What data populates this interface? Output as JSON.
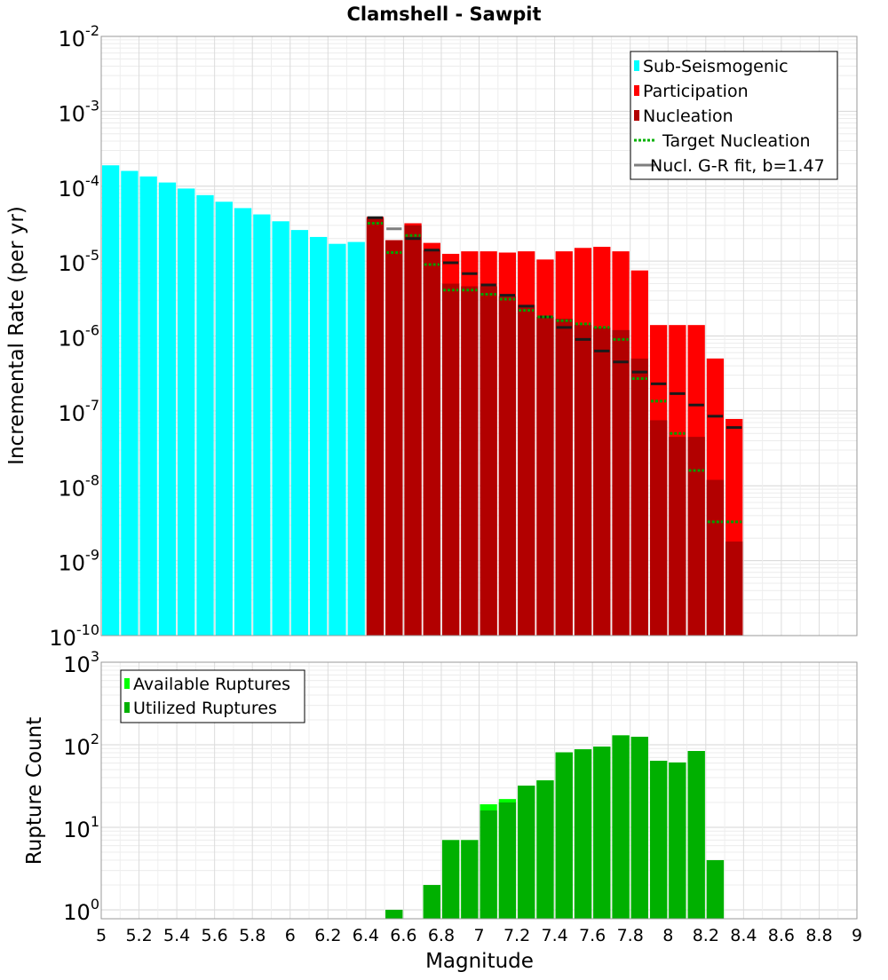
{
  "chart_data": [
    {
      "type": "bar",
      "title": "Clamshell - Sawpit",
      "xlabel": "",
      "ylabel": "Incremental Rate (per yr)",
      "yscale": "log",
      "ylim_exponents": [
        -10,
        -2
      ],
      "xlim": [
        5,
        9
      ],
      "grid": true,
      "bar_width": 0.1,
      "colors": {
        "sub_seismogenic": "#00ffff",
        "participation": "#ff0000",
        "nucleation": "#b20000",
        "target_nucleation": "#00a000",
        "gr_fit": "#7f7f7f",
        "nucl_tick": "#1a1a1a"
      },
      "legend": {
        "position": "top-right",
        "entries": [
          {
            "label": "Sub-Seismogenic",
            "kind": "box",
            "color": "#00ffff"
          },
          {
            "label": "Participation",
            "kind": "box",
            "color": "#ff0000"
          },
          {
            "label": "Nucleation",
            "kind": "box",
            "color": "#b20000"
          },
          {
            "label": "Target Nucleation",
            "kind": "dotted",
            "color": "#00b000"
          },
          {
            "label": "Nucl. G-R fit, b=1.47",
            "kind": "line",
            "color": "#7f7f7f"
          }
        ]
      },
      "series": [
        {
          "name": "Sub-Seismogenic",
          "x": [
            5.05,
            5.15,
            5.25,
            5.35,
            5.45,
            5.55,
            5.65,
            5.75,
            5.85,
            5.95,
            6.05,
            6.15,
            6.25,
            6.35
          ],
          "values": [
            0.00019,
            0.00016,
            0.000135,
            0.000112,
            9.3e-05,
            7.6e-05,
            6.2e-05,
            5.1e-05,
            4.2e-05,
            3.4e-05,
            2.6e-05,
            2.1e-05,
            1.7e-05,
            1.8e-05
          ]
        },
        {
          "name": "Participation",
          "x": [
            6.45,
            6.55,
            6.65,
            6.75,
            6.85,
            6.95,
            7.05,
            7.15,
            7.25,
            7.35,
            7.45,
            7.55,
            7.65,
            7.75,
            7.85,
            7.95,
            8.05,
            8.15,
            8.25,
            8.35
          ],
          "values": [
            3.9e-05,
            1.9e-05,
            3.2e-05,
            1.75e-05,
            1.25e-05,
            1.35e-05,
            1.35e-05,
            1.3e-05,
            1.35e-05,
            1.05e-05,
            1.35e-05,
            1.5e-05,
            1.55e-05,
            1.35e-05,
            7.5e-06,
            1.4e-06,
            1.4e-06,
            1.4e-06,
            5e-07,
            7.8e-08
          ]
        },
        {
          "name": "Nucleation",
          "x": [
            6.45,
            6.55,
            6.65,
            6.75,
            6.85,
            6.95,
            7.05,
            7.15,
            7.25,
            7.35,
            7.45,
            7.55,
            7.65,
            7.75,
            7.85,
            7.95,
            8.05,
            8.15,
            8.25,
            8.35
          ],
          "values": [
            3.7e-05,
            1.9e-05,
            3e-05,
            1.4e-05,
            5e-06,
            4.6e-06,
            4.6e-06,
            3.4e-06,
            2.6e-06,
            1.8e-06,
            1.7e-06,
            1.4e-06,
            1.3e-06,
            1.2e-06,
            5e-07,
            7.5e-08,
            4.5e-08,
            4.5e-08,
            1.2e-08,
            1.8e-09
          ]
        },
        {
          "name": "Nucleation tick",
          "x": [
            6.45,
            6.65,
            6.75,
            6.85,
            6.95,
            7.05,
            7.15,
            7.25,
            7.35,
            7.45,
            7.55,
            7.65,
            7.75,
            7.85,
            7.95,
            8.05,
            8.15,
            8.25,
            8.35
          ],
          "values": [
            3.8e-05,
            2e-05,
            1.4e-05,
            9.5e-06,
            6.8e-06,
            4.8e-06,
            3.5e-06,
            2.5e-06,
            1.8e-06,
            1.3e-06,
            9e-07,
            6.3e-07,
            4.5e-07,
            3.3e-07,
            2.3e-07,
            1.7e-07,
            1.2e-07,
            8.5e-08,
            6e-08
          ]
        },
        {
          "name": "Nucl. G-R fit, b=1.47",
          "x": [
            6.55
          ],
          "values": [
            2.7e-05
          ]
        },
        {
          "name": "Target Nucleation",
          "x": [
            6.45,
            6.55,
            6.65,
            6.75,
            6.85,
            6.95,
            7.05,
            7.15,
            7.25,
            7.35,
            7.45,
            7.55,
            7.65,
            7.75,
            7.85,
            7.95,
            8.05,
            8.15,
            8.25,
            8.35
          ],
          "values": [
            3.2e-05,
            1.3e-05,
            2.2e-05,
            9e-06,
            4.1e-06,
            4.1e-06,
            3.6e-06,
            3.1e-06,
            2.2e-06,
            1.8e-06,
            1.6e-06,
            1.45e-06,
            1.3e-06,
            9e-07,
            2.7e-07,
            1.35e-07,
            5e-08,
            1.6e-08,
            3.3e-09,
            3.3e-09
          ]
        }
      ]
    },
    {
      "type": "bar",
      "title": "",
      "xlabel": "Magnitude",
      "ylabel": "Rupture Count",
      "yscale": "log",
      "ylim": [
        0.78,
        1000
      ],
      "xlim": [
        5,
        9
      ],
      "x_ticks": [
        "5",
        "5.2",
        "5.4",
        "5.6",
        "5.8",
        "6",
        "6.2",
        "6.4",
        "6.6",
        "6.8",
        "7",
        "7.2",
        "7.4",
        "7.6",
        "7.8",
        "8",
        "8.2",
        "8.4",
        "8.6",
        "8.8",
        "9"
      ],
      "grid": true,
      "colors": {
        "available": "#00ff00",
        "utilized": "#00b000"
      },
      "legend": {
        "position": "top-left",
        "entries": [
          {
            "label": "Available Ruptures",
            "color": "#00ff00"
          },
          {
            "label": "Utilized Ruptures",
            "color": "#00b000"
          }
        ]
      },
      "series": [
        {
          "name": "Available Ruptures",
          "x": [
            6.55,
            6.75,
            6.85,
            6.95,
            7.05,
            7.15,
            7.25,
            7.35,
            7.45,
            7.55,
            7.65,
            7.75,
            7.85,
            7.95,
            8.05,
            8.15,
            8.25
          ],
          "values": [
            1,
            2,
            7,
            7,
            19,
            22,
            32,
            37,
            81,
            88,
            95,
            130,
            125,
            64,
            61,
            84,
            4
          ]
        },
        {
          "name": "Utilized Ruptures",
          "x": [
            6.55,
            6.75,
            6.85,
            6.95,
            7.05,
            7.15,
            7.25,
            7.35,
            7.45,
            7.55,
            7.65,
            7.75,
            7.85,
            7.95,
            8.05,
            8.15,
            8.25
          ],
          "values": [
            1,
            2,
            7,
            7,
            16,
            20,
            32,
            37,
            81,
            88,
            95,
            130,
            125,
            64,
            61,
            84,
            4
          ]
        }
      ]
    }
  ]
}
